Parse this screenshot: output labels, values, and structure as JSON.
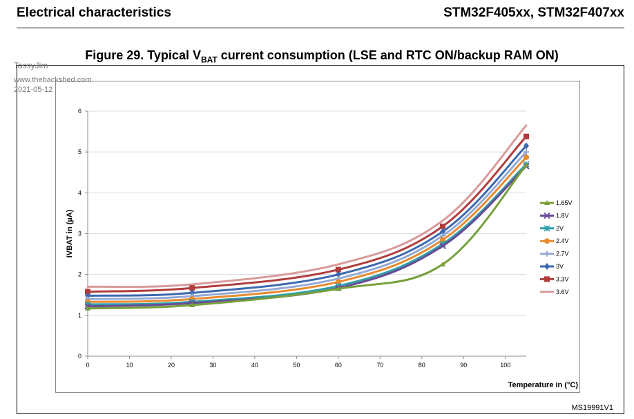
{
  "header": {
    "section_title": "Electrical characteristics",
    "product": "STM32F405xx, STM32F407xx"
  },
  "figure": {
    "title_prefix": "Figure 29. Typical V",
    "title_sub": "BAT",
    "title_suffix": " current consumption (LSE and RTC ON/backup RAM ON)",
    "id": "MS19991V1"
  },
  "watermark": {
    "user": "TassyJim",
    "site": "www.thebackshed.com",
    "date": "2021-05-12"
  },
  "chart_data": {
    "type": "line",
    "xlabel": "Temperature in (°C)",
    "ylabel": "IVBAT in (µA)",
    "xlim": [
      0,
      105
    ],
    "ylim": [
      0,
      6
    ],
    "x_ticks": [
      0,
      10,
      20,
      30,
      40,
      50,
      60,
      70,
      80,
      90,
      100
    ],
    "y_ticks": [
      0,
      1,
      2,
      3,
      4,
      5,
      6
    ],
    "grid": "horizontal",
    "legend_position": "right",
    "x": [
      0,
      25,
      60,
      85,
      105
    ],
    "series": [
      {
        "name": "1.65V",
        "color": "#77a03a",
        "marker": "triangle",
        "values": [
          1.17,
          1.25,
          1.65,
          2.25,
          4.68
        ]
      },
      {
        "name": "1.8V",
        "color": "#6a4a97",
        "marker": "x",
        "values": [
          1.22,
          1.3,
          1.67,
          2.7,
          4.65
        ]
      },
      {
        "name": "2V",
        "color": "#2f9fa8",
        "marker": "asterisk",
        "values": [
          1.27,
          1.33,
          1.72,
          2.75,
          4.7
        ]
      },
      {
        "name": "2.4V",
        "color": "#e88a2e",
        "marker": "circle",
        "values": [
          1.33,
          1.4,
          1.82,
          2.85,
          4.87
        ]
      },
      {
        "name": "2.7V",
        "color": "#94a9d6",
        "marker": "plus",
        "values": [
          1.4,
          1.47,
          1.9,
          2.95,
          5.0
        ]
      },
      {
        "name": "3V",
        "color": "#3b68b0",
        "marker": "diamond",
        "values": [
          1.48,
          1.55,
          2.0,
          3.05,
          5.15
        ]
      },
      {
        "name": "3.3V",
        "color": "#b03c3c",
        "marker": "square",
        "values": [
          1.58,
          1.67,
          2.12,
          3.18,
          5.38
        ]
      },
      {
        "name": "3.6V",
        "color": "#d99a9a",
        "marker": "none",
        "values": [
          1.7,
          1.76,
          2.25,
          3.32,
          5.65
        ]
      }
    ]
  }
}
